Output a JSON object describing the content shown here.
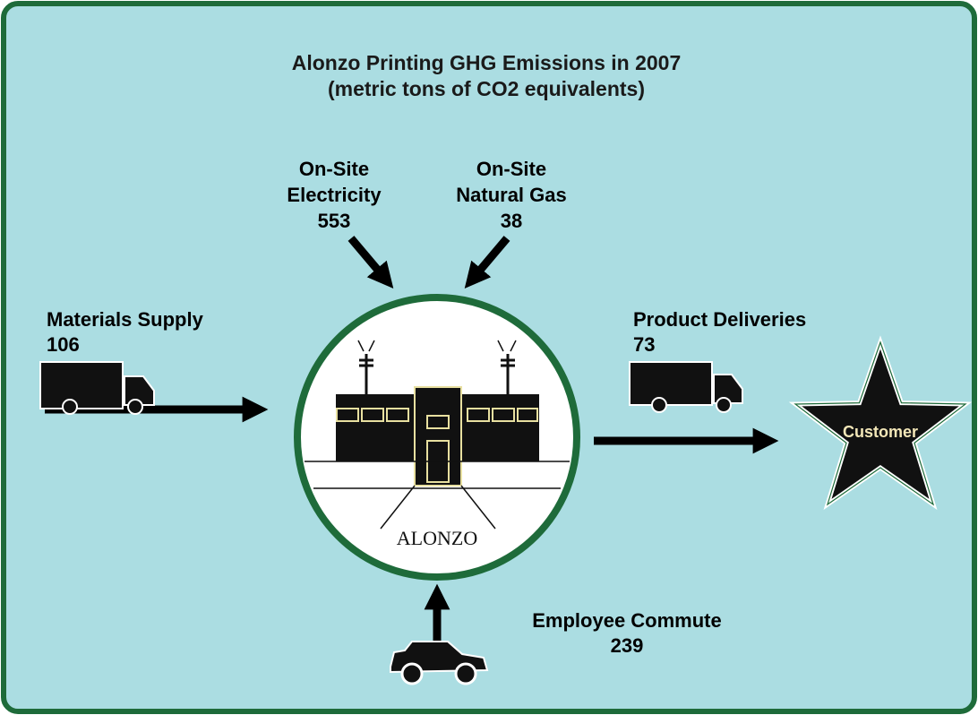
{
  "title": [
    "Alonzo Printing GHG Emissions in 2007",
    "(metric tons of CO2 equivalents)"
  ],
  "sources": [
    {
      "label": [
        "On-Site",
        "Electricity"
      ],
      "value": "553"
    },
    {
      "label": [
        "On-Site",
        "Natural Gas"
      ],
      "value": "38"
    },
    {
      "label": [
        "Materials Supply"
      ],
      "value": "106"
    },
    {
      "label": [
        "Product Deliveries"
      ],
      "value": "73"
    },
    {
      "label": [
        "Employee Commute"
      ],
      "value": "239"
    }
  ],
  "center": {
    "label": "ALONZO"
  },
  "customer": {
    "label": "Customer"
  }
}
